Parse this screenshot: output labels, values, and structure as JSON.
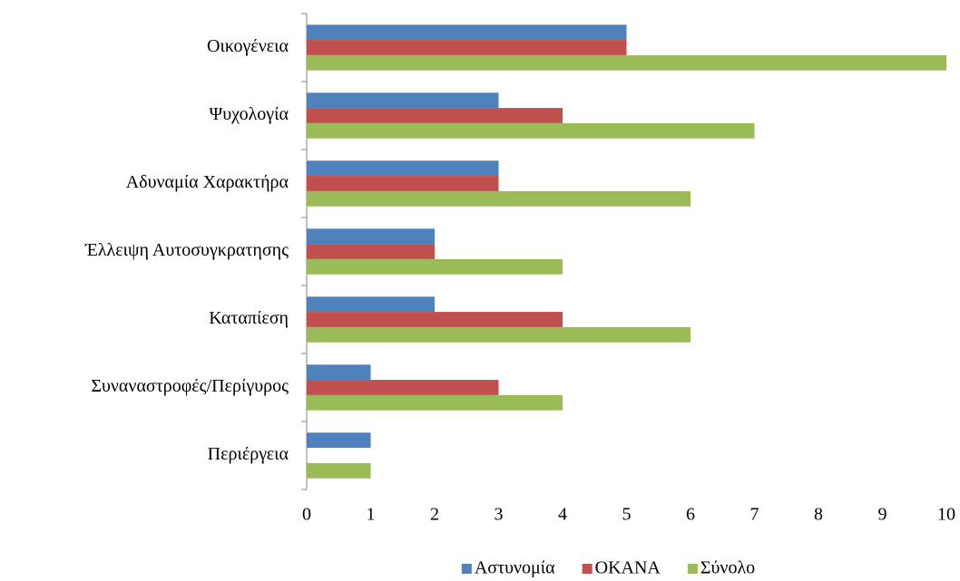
{
  "chart_data": {
    "type": "barh",
    "categories": [
      "Οικογένεια",
      "Ψυχολογία",
      "Αδυναμία Χαρακτήρα",
      "Έλλειψη Αυτοσυγκρατησης",
      "Καταπίεση",
      "Συναναστροφές/Περίγυρος",
      "Περιέργεια"
    ],
    "series": [
      {
        "name": "Αστυνομία",
        "color": "#4f81bd",
        "values": [
          5,
          3,
          3,
          2,
          2,
          1,
          1
        ]
      },
      {
        "name": "ΟΚΑΝΑ",
        "color": "#c0504d",
        "values": [
          5,
          4,
          3,
          2,
          4,
          3,
          0
        ]
      },
      {
        "name": "Σύνολο",
        "color": "#9bbb59",
        "values": [
          10,
          7,
          6,
          4,
          6,
          4,
          1
        ]
      }
    ],
    "xlim": [
      0,
      10
    ],
    "xticks": [
      0,
      1,
      2,
      3,
      4,
      5,
      6,
      7,
      8,
      9,
      10
    ],
    "legend": "bottom"
  }
}
